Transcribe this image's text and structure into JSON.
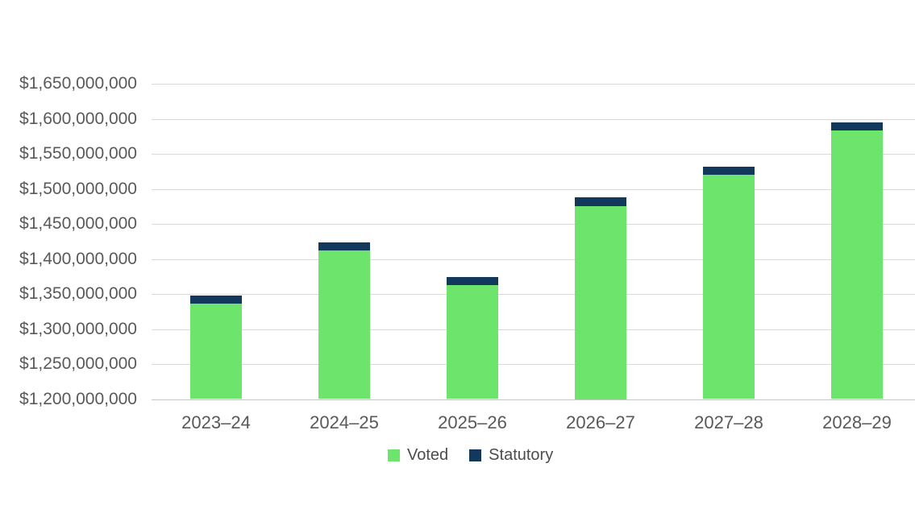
{
  "chart_data": {
    "type": "bar",
    "stacked": true,
    "title": "",
    "xlabel": "",
    "ylabel": "",
    "categories": [
      "2023–24",
      "2024–25",
      "2025–26",
      "2026–27",
      "2027–28",
      "2028–29"
    ],
    "series": [
      {
        "name": "Voted",
        "color": "#6de56c",
        "values": [
          1336000000,
          1412000000,
          1363000000,
          1475000000,
          1520000000,
          1583000000
        ]
      },
      {
        "name": "Statutory",
        "color": "#12395b",
        "values": [
          12000000,
          12000000,
          11000000,
          13000000,
          12000000,
          12000000
        ]
      }
    ],
    "ylim": [
      1200000000,
      1650000000
    ],
    "ytick_step": 50000000,
    "ytick_labels": [
      "$1,650,000,000",
      "$1,600,000,000",
      "$1,550,000,000",
      "$1,500,000,000",
      "$1,450,000,000",
      "$1,400,000,000",
      "$1,350,000,000",
      "$1,300,000,000",
      "$1,250,000,000",
      "$1,200,000,000"
    ],
    "grid": "horizontal",
    "legend_position": "bottom-center",
    "colors": {
      "voted": "#6de56c",
      "statutory": "#12395b",
      "gridline": "#d9d9d9",
      "axis_line": "#c6c6c6",
      "tick_text": "#595959",
      "legend_text": "#4c4c4c",
      "background": "#ffffff"
    }
  }
}
